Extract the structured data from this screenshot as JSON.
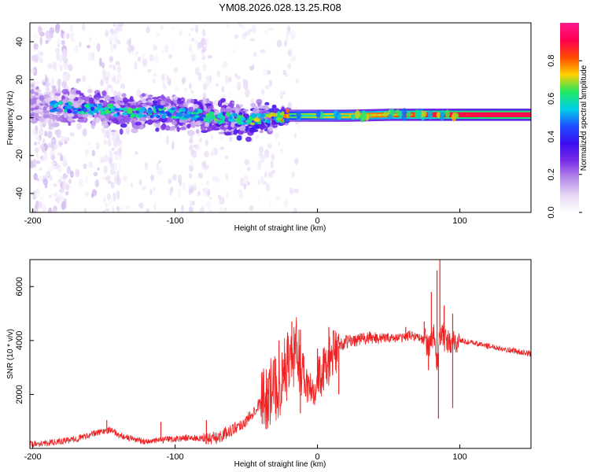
{
  "figure_title": "YM08.2026.028.13.25.R08",
  "colors": {
    "snr_line": "#ee2222",
    "frame": "#000000",
    "spectrogram_background": "#ffffff"
  },
  "chart_data": [
    {
      "type": "heatmap",
      "name": "spectrogram",
      "xlabel": "Height of straight line (km)",
      "ylabel": "Frequency (Hz)",
      "xlim": [
        -202,
        150
      ],
      "ylim": [
        -50,
        50
      ],
      "x_ticks": [
        -200,
        -100,
        0,
        100
      ],
      "x_tick_labels": [
        "-200",
        "-100",
        "0",
        "100"
      ],
      "y_ticks": [
        -40,
        -20,
        0,
        20,
        40
      ],
      "y_tick_labels": [
        "-40",
        "-20",
        "0",
        "20",
        "40"
      ],
      "colorbar": {
        "label": "Normalized spectral amplitude",
        "range": [
          0,
          1
        ],
        "ticks": [
          0.0,
          0.2,
          0.4,
          0.6,
          0.8
        ],
        "tick_labels": [
          "0.0",
          "0.2",
          "0.4",
          "0.6",
          "0.8"
        ],
        "colormap": [
          "#ffffff",
          "#e6d8f5",
          "#b58ae8",
          "#7a2ce6",
          "#3a0ef0",
          "#1e4cff",
          "#00d0e8",
          "#22e860",
          "#ffd000",
          "#ff4a00",
          "#ff0050",
          "#ff1a8c"
        ]
      },
      "ridge": [
        {
          "x": -190,
          "freq": 6,
          "amplitude": 0.18
        },
        {
          "x": -170,
          "freq": 5,
          "amplitude": 0.22
        },
        {
          "x": -150,
          "freq": 4,
          "amplitude": 0.25
        },
        {
          "x": -130,
          "freq": 3,
          "amplitude": 0.28
        },
        {
          "x": -110,
          "freq": 3,
          "amplitude": 0.26
        },
        {
          "x": -90,
          "freq": 2,
          "amplitude": 0.24
        },
        {
          "x": -70,
          "freq": 0,
          "amplitude": 0.3
        },
        {
          "x": -50,
          "freq": -1,
          "amplitude": 0.32
        },
        {
          "x": -30,
          "freq": 0,
          "amplitude": 0.35
        },
        {
          "x": -20,
          "freq": 1,
          "amplitude": 0.45
        },
        {
          "x": 0,
          "freq": 1,
          "amplitude": 0.55
        },
        {
          "x": 20,
          "freq": 1,
          "amplitude": 0.6
        },
        {
          "x": 50,
          "freq": 1.5,
          "amplitude": 0.7
        },
        {
          "x": 80,
          "freq": 1.5,
          "amplitude": 0.82
        },
        {
          "x": 100,
          "freq": 1.5,
          "amplitude": 0.86
        },
        {
          "x": 130,
          "freq": 1.5,
          "amplitude": 0.88
        },
        {
          "x": 150,
          "freq": 1.5,
          "amplitude": 0.88
        }
      ]
    },
    {
      "type": "line",
      "name": "snr",
      "xlabel": "Height of straight line (km)",
      "ylabel": "SNR (10 * v/v)",
      "xlim": [
        -202,
        150
      ],
      "ylim": [
        0,
        7000
      ],
      "x_ticks": [
        -200,
        -100,
        0,
        100
      ],
      "x_tick_labels": [
        "-200",
        "-100",
        "0",
        "100"
      ],
      "y_ticks": [
        2000,
        4000,
        6000
      ],
      "y_tick_labels": [
        "2000",
        "4000",
        "6000"
      ],
      "series": [
        {
          "name": "SNR",
          "x": [
            -202,
            -190,
            -180,
            -170,
            -160,
            -150,
            -145,
            -140,
            -130,
            -120,
            -110,
            -100,
            -90,
            -80,
            -70,
            -60,
            -50,
            -45,
            -40,
            -35,
            -30,
            -25,
            -22,
            -20,
            -17,
            -15,
            -12,
            -10,
            -8,
            -5,
            0,
            5,
            10,
            15,
            20,
            30,
            40,
            50,
            60,
            65,
            70,
            75,
            80,
            82,
            84,
            86,
            88,
            90,
            95,
            100,
            110,
            120,
            130,
            140,
            150
          ],
          "y": [
            150,
            200,
            250,
            350,
            500,
            650,
            700,
            500,
            350,
            250,
            300,
            350,
            400,
            350,
            400,
            700,
            1000,
            1400,
            1700,
            2000,
            2200,
            2500,
            3000,
            3200,
            3400,
            3600,
            3300,
            2900,
            2500,
            2300,
            2600,
            2900,
            3400,
            3800,
            3950,
            4050,
            4100,
            4100,
            4100,
            4200,
            4150,
            4000,
            3800,
            4300,
            3000,
            4100,
            4300,
            3900,
            3900,
            4000,
            3900,
            3800,
            3700,
            3600,
            3500
          ]
        }
      ],
      "spikes": [
        {
          "x": -148,
          "y": 1050
        },
        {
          "x": -110,
          "y": 980
        },
        {
          "x": -78,
          "y": 1050
        },
        {
          "x": -35,
          "y": 2600
        },
        {
          "x": -27,
          "y": 4000
        },
        {
          "x": -24,
          "y": 3300
        },
        {
          "x": -21,
          "y": 4300
        },
        {
          "x": -18,
          "y": 4700
        },
        {
          "x": -12,
          "y": 4400
        },
        {
          "x": 0,
          "y": 3700
        },
        {
          "x": 8,
          "y": 4500
        },
        {
          "x": 62,
          "y": 4500
        },
        {
          "x": 75,
          "y": 4700
        },
        {
          "x": 80,
          "y": 5800
        },
        {
          "x": 84,
          "y": 6600
        },
        {
          "x": 86,
          "y": 7000
        },
        {
          "x": 89,
          "y": 5300
        },
        {
          "x": 95,
          "y": 5000
        }
      ],
      "dips": [
        {
          "x": -12,
          "y": 1300
        },
        {
          "x": -5,
          "y": 2100
        },
        {
          "x": 15,
          "y": 2000
        },
        {
          "x": 78,
          "y": 2900
        },
        {
          "x": 85,
          "y": 1100
        },
        {
          "x": 95,
          "y": 1500
        }
      ]
    }
  ]
}
